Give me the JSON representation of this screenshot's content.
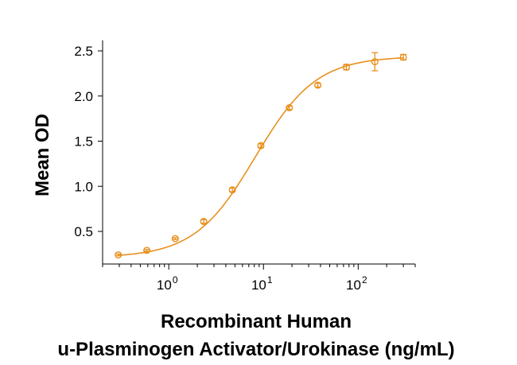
{
  "chart_data": {
    "type": "scatter",
    "title": "",
    "ylabel": "Mean OD",
    "xlabel_lines": [
      "Recombinant Human",
      "u-Plasminogen Activator/Urokinase (ng/mL)"
    ],
    "x_scale": "log",
    "xlim": [
      0.2,
      400
    ],
    "ylim": [
      0.15,
      2.6
    ],
    "yticks": [
      0.5,
      1.0,
      1.5,
      2.0,
      2.5
    ],
    "ytick_labels": [
      "0.5",
      "1.0",
      "1.5",
      "2.0",
      "2.5"
    ],
    "xticks": [
      1,
      10,
      100
    ],
    "xtick_base": [
      "10",
      "10",
      "10"
    ],
    "xtick_exp": [
      "0",
      "1",
      "2"
    ],
    "grid": false,
    "legend": "none",
    "color": "#E8901E",
    "series": [
      {
        "x": [
          0.293,
          0.586,
          1.17,
          2.34,
          4.69,
          9.38,
          18.75,
          37.5,
          75,
          150,
          300
        ],
        "y": [
          0.24,
          0.29,
          0.42,
          0.61,
          0.96,
          1.45,
          1.87,
          2.12,
          2.32,
          2.38,
          2.43
        ],
        "err": [
          0.01,
          0.01,
          0.01,
          0.02,
          0.02,
          0.02,
          0.02,
          0.02,
          0.03,
          0.1,
          0.03
        ]
      }
    ],
    "fit": {
      "model": "4PL",
      "bottom": 0.21,
      "top": 2.44,
      "ec50": 8.2,
      "hill": 1.35
    }
  }
}
